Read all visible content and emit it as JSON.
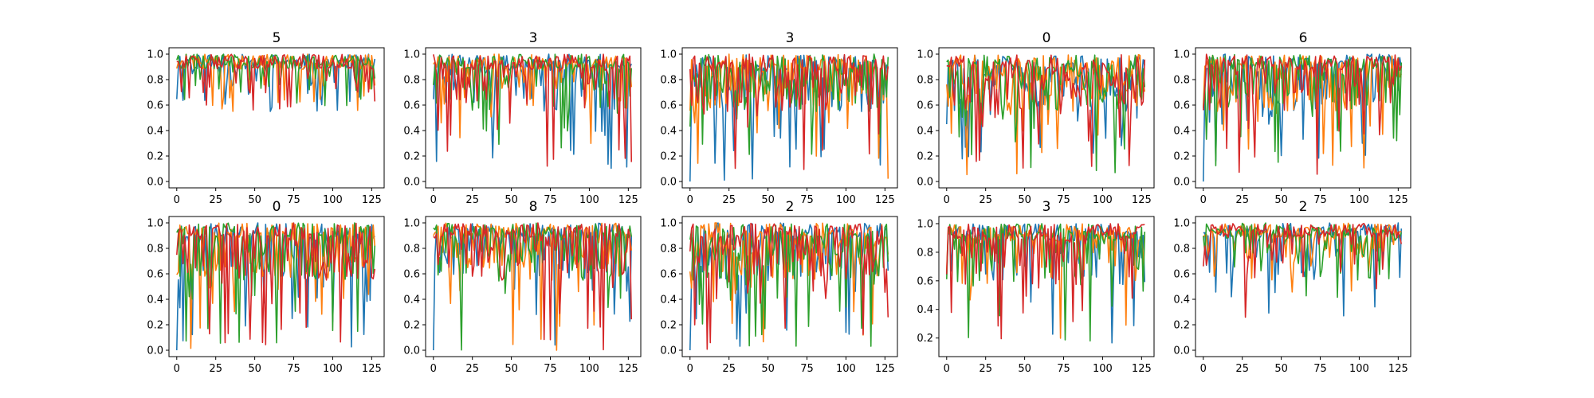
{
  "chart_data": {
    "type": "line",
    "xlim": [
      -5,
      133
    ],
    "xticks": [
      "0",
      "25",
      "50",
      "75",
      "100",
      "125"
    ],
    "series_colors": [
      "#1f77b4",
      "#ff7f0e",
      "#2ca02c",
      "#d62728"
    ],
    "grid": false,
    "legend": "none",
    "note": "Each subplot shows 4 series of 128 points (x = 0..127), values estimated from the image.",
    "panels": [
      {
        "title": "5",
        "ylim": [
          -0.05,
          1.05
        ],
        "yticks": [
          "0.0",
          "0.2",
          "0.4",
          "0.6",
          "0.8",
          "1.0"
        ],
        "seed": 11,
        "floor": 0.55,
        "dipProb": 0.25,
        "fast": 3
      },
      {
        "title": "3",
        "ylim": [
          -0.05,
          1.05
        ],
        "yticks": [
          "0.0",
          "0.2",
          "0.4",
          "0.6",
          "0.8",
          "1.0"
        ],
        "seed": 22,
        "floor": 0.1,
        "dipProb": 0.35,
        "fast": 3
      },
      {
        "title": "3",
        "ylim": [
          -0.05,
          1.05
        ],
        "yticks": [
          "0.0",
          "0.2",
          "0.4",
          "0.6",
          "0.8",
          "1.0"
        ],
        "seed": 33,
        "floor": 0.0,
        "dipProb": 0.55,
        "fast": 3
      },
      {
        "title": "0",
        "ylim": [
          -0.05,
          1.05
        ],
        "yticks": [
          "0.0",
          "0.2",
          "0.4",
          "0.6",
          "0.8",
          "1.0"
        ],
        "seed": 44,
        "floor": 0.0,
        "dipProb": 0.6,
        "fast": 4
      },
      {
        "title": "6",
        "ylim": [
          -0.05,
          1.05
        ],
        "yticks": [
          "0.0",
          "0.2",
          "0.4",
          "0.6",
          "0.8",
          "1.0"
        ],
        "seed": 55,
        "floor": 0.05,
        "dipProb": 0.45,
        "fast": 3
      },
      {
        "title": "0",
        "ylim": [
          -0.05,
          1.05
        ],
        "yticks": [
          "0.0",
          "0.2",
          "0.4",
          "0.6",
          "0.8",
          "1.0"
        ],
        "seed": 66,
        "floor": 0.0,
        "dipProb": 0.5,
        "fast": 3
      },
      {
        "title": "8",
        "ylim": [
          -0.05,
          1.05
        ],
        "yticks": [
          "0.0",
          "0.2",
          "0.4",
          "0.6",
          "0.8",
          "1.0"
        ],
        "seed": 77,
        "floor": 0.0,
        "dipProb": 0.5,
        "fast": 3
      },
      {
        "title": "2",
        "ylim": [
          -0.05,
          1.05
        ],
        "yticks": [
          "0.0",
          "0.2",
          "0.4",
          "0.6",
          "0.8",
          "1.0"
        ],
        "seed": 88,
        "floor": 0.0,
        "dipProb": 0.6,
        "fast": 3
      },
      {
        "title": "3",
        "ylim": [
          0.07,
          1.05
        ],
        "yticks": [
          "0.2",
          "0.4",
          "0.6",
          "0.8",
          "1.0"
        ],
        "seed": 99,
        "floor": 0.15,
        "dipProb": 0.3,
        "fast": 3
      },
      {
        "title": "2",
        "ylim": [
          -0.05,
          1.05
        ],
        "yticks": [
          "0.0",
          "0.2",
          "0.4",
          "0.6",
          "0.8",
          "1.0"
        ],
        "seed": 111,
        "floor": 0.25,
        "dipProb": 0.25,
        "fast": 4
      }
    ]
  }
}
